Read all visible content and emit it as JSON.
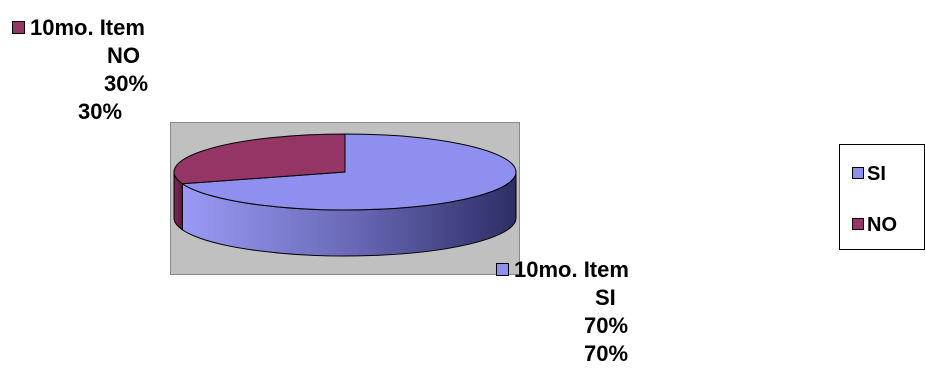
{
  "chart_data": {
    "type": "pie",
    "style": "3d",
    "slices": [
      {
        "label": "SI",
        "value": 70,
        "color": "#8f8ff0",
        "data_label": [
          "10mo. Item",
          "SI",
          "70%",
          "70%"
        ]
      },
      {
        "label": "NO",
        "value": 30,
        "color": "#953566",
        "data_label": [
          "10mo. Item",
          "NO",
          "30%",
          "30%"
        ]
      }
    ],
    "legend": {
      "placement": "right",
      "items": [
        {
          "label": "SI",
          "color": "#8f8ff0"
        },
        {
          "label": "NO",
          "color": "#953566"
        }
      ]
    }
  }
}
